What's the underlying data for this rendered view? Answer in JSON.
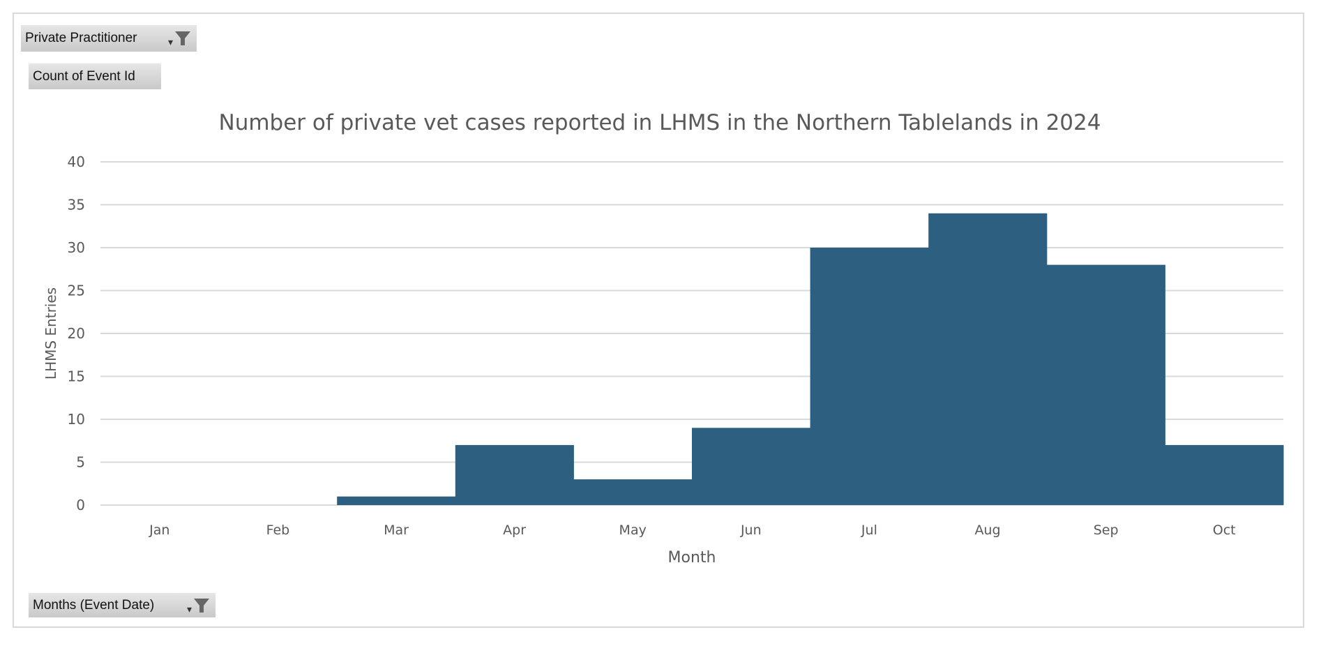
{
  "filters": {
    "report_filter": "Private Practitioner",
    "value_field": "Count of Event Id",
    "axis_field": "Months (Event Date)"
  },
  "colors": {
    "bar": "#2c5f80",
    "grid": "#d9d9d9",
    "text": "#595959"
  },
  "chart_data": {
    "type": "bar",
    "title": "Number of private vet cases reported in LHMS in the Northern Tablelands in 2024",
    "xlabel": "Month",
    "ylabel": "LHMS Entries",
    "categories": [
      "Jan",
      "Feb",
      "Mar",
      "Apr",
      "May",
      "Jun",
      "Jul",
      "Aug",
      "Sep",
      "Oct"
    ],
    "values": [
      0,
      0,
      1,
      7,
      3,
      9,
      30,
      34,
      28,
      7
    ],
    "ylim": [
      0,
      40
    ],
    "yticks": [
      0,
      5,
      10,
      15,
      20,
      25,
      30,
      35,
      40
    ],
    "grid": true,
    "legend": "none",
    "gap_width": 0
  }
}
